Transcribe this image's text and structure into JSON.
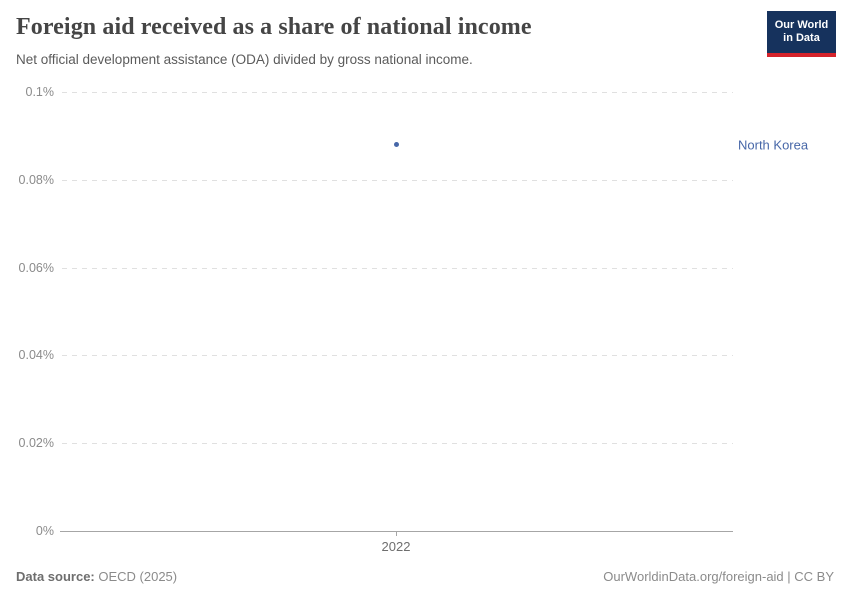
{
  "header": {
    "title": "Foreign aid received as a share of national income",
    "subtitle": "Net official development assistance (ODA) divided by gross national income.",
    "logo": {
      "line1": "Our World",
      "line2": "in Data"
    }
  },
  "chart_data": {
    "type": "scatter",
    "title": "Foreign aid received as a share of national income",
    "subtitle": "Net official development assistance (ODA) divided by gross national income.",
    "series": [
      {
        "name": "North Korea",
        "x": [
          2022
        ],
        "values": [
          0.088
        ],
        "color": "#4767a8"
      }
    ],
    "x_ticks": [
      "2022"
    ],
    "y_ticks": [
      "0.1%",
      "0.08%",
      "0.06%",
      "0.04%",
      "0.02%",
      "0%"
    ],
    "y_tick_values": [
      0.1,
      0.08,
      0.06,
      0.04,
      0.02,
      0
    ],
    "xlabel": "",
    "ylabel": "",
    "ylim": [
      0,
      0.1
    ],
    "grid": "horizontal-dashed",
    "legend_position": "right-of-point"
  },
  "footer": {
    "datasource_label": "Data source:",
    "datasource_value": " OECD (2025)",
    "right": "OurWorldinData.org/foreign-aid | CC BY"
  },
  "colors": {
    "series_blue": "#4767a8",
    "logo_navy": "#16325d",
    "logo_red": "#d5232b",
    "gridline": "#e0e0e0",
    "axis": "#a6a6a6"
  }
}
